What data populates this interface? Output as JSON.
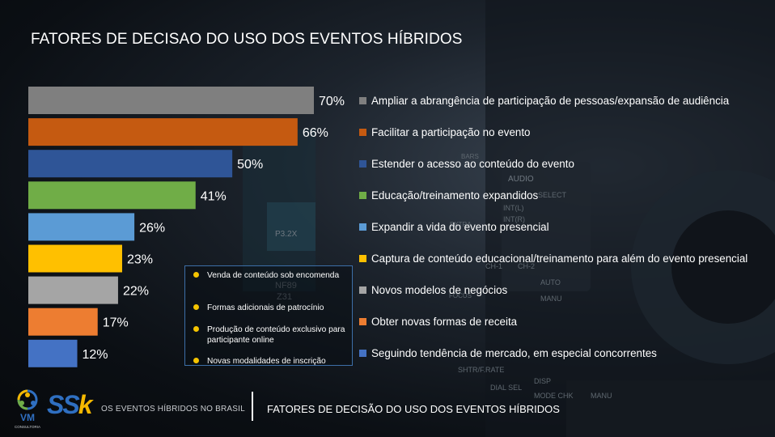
{
  "page": {
    "title": "FATORES DE DECISAO DO USO DOS EVENTOS HÍBRIDOS"
  },
  "chart_data": {
    "type": "bar",
    "orientation": "horizontal",
    "title": "",
    "xlabel": "",
    "ylabel": "",
    "xlim": [
      0,
      100
    ],
    "grid": false,
    "legend": "right",
    "categories": [
      "Ampliar a abrangência de participação de pessoas/expansão de audiência",
      "Facilitar a participação no evento",
      "Estender o acesso ao conteúdo do evento",
      "Educação/treinamento expandidos",
      "Expandir a vida do evento presencial",
      "Captura de conteúdo educacional/treinamento para além do evento presencial",
      "Novos modelos de negócios",
      "Obter novas formas de receita",
      "Seguindo tendência de mercado, em especial concorrentes"
    ],
    "values": [
      70,
      66,
      50,
      41,
      26,
      23,
      22,
      17,
      12
    ],
    "value_labels": [
      "70%",
      "66%",
      "50%",
      "41%",
      "26%",
      "23%",
      "22%",
      "17%",
      "12%"
    ],
    "colors": [
      "#7f7f7f",
      "#c55a11",
      "#2f5597",
      "#70ad47",
      "#5b9bd5",
      "#ffc000",
      "#a5a5a5",
      "#ed7d31",
      "#4472c4"
    ]
  },
  "callout": {
    "items": [
      "Venda de conteúdo sob encomenda",
      "Formas adicionais de patrocínio",
      "Produção de conteúdo exclusivo para participante online",
      "Novas modalidades de inscrição"
    ]
  },
  "footer": {
    "left_text": "OS EVENTOS HÍBRIDOS NO BRASIL",
    "right_text": "FATORES DE DECISÃO DO USO DOS EVENTOS HÍBRIDOS"
  },
  "logos": {
    "vm_text": "VM",
    "vm_sub": "CONSULTORIA",
    "ssk_parts": [
      "S",
      "S",
      "k"
    ]
  },
  "background": {
    "texts": [
      "AUDIO",
      "INT(L)",
      "INT(R)",
      "SELECT",
      "CH-1",
      "CH-2",
      "AUTO",
      "MANU",
      "P3.2X",
      "NF89",
      "Z31",
      "SHTR/F.RATE",
      "DIAL SEL",
      "DISP",
      "MODE CHK",
      "BARS",
      "FOCUS",
      "MANU",
      "EXTRA"
    ]
  }
}
